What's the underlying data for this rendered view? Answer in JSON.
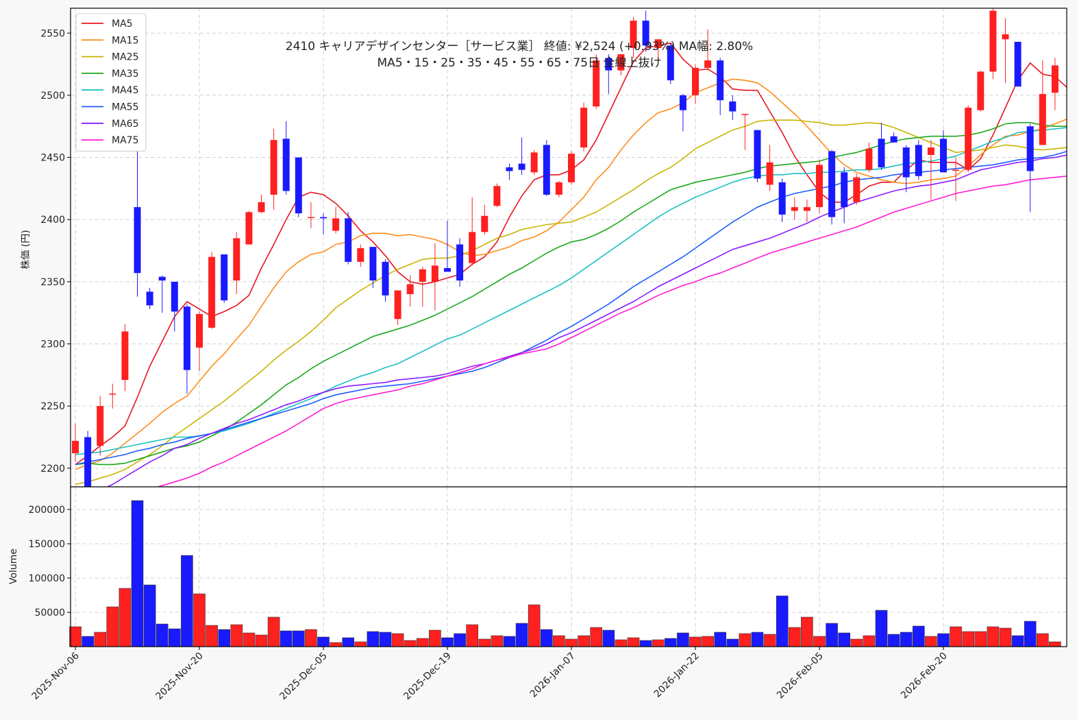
{
  "colors": {
    "up": "#ff2020",
    "down": "#1a1aff",
    "axis": "#000000",
    "MA5": "#e8141c",
    "MA15": "#ff8c1a",
    "MA25": "#c8b400",
    "MA35": "#1aa81a",
    "MA45": "#1ac0c0",
    "MA55": "#1a5cff",
    "MA65": "#8a1aff",
    "MA75": "#ff1ad2"
  },
  "chart_data": {
    "type": "candlestick",
    "title_line1": "2410 キャリアデザインセンター［サービス業］ 終値: ¥2,524 (+0.93%) MA幅: 2.80%",
    "title_line2": "MA5・15・25・35・45・55・65・75日 全線上抜け",
    "ylabel_price": "株価 (円)",
    "ylabel_volume": "Volume",
    "price_ylim": [
      2185,
      2570
    ],
    "price_ticks": [
      2200,
      2250,
      2300,
      2350,
      2400,
      2450,
      2500,
      2550
    ],
    "volume_ylim": [
      0,
      225000
    ],
    "volume_ticks": [
      50000,
      100000,
      150000,
      200000
    ],
    "volume_tick_labels": [
      "50000",
      "100000",
      "150000",
      "200000"
    ],
    "x_tick_labels": [
      {
        "index": 0,
        "label": "2025-Nov-06"
      },
      {
        "index": 10,
        "label": "2025-Nov-20"
      },
      {
        "index": 20,
        "label": "2025-Dec-05"
      },
      {
        "index": 30,
        "label": "2025-Dec-19"
      },
      {
        "index": 40,
        "label": "2026-Jan-07"
      },
      {
        "index": 50,
        "label": "2026-Jan-22"
      },
      {
        "index": 60,
        "label": "2026-Feb-05"
      },
      {
        "index": 70,
        "label": "2026-Feb-20"
      }
    ],
    "legend": [
      "MA5",
      "MA15",
      "MA25",
      "MA35",
      "MA45",
      "MA55",
      "MA65",
      "MA75"
    ],
    "candles": [
      {
        "o": 2212,
        "h": 2236,
        "l": 2205,
        "c": 2222,
        "v": 29000
      },
      {
        "o": 2225,
        "h": 2230,
        "l": 2178,
        "c": 2185,
        "v": 15000
      },
      {
        "o": 2218,
        "h": 2258,
        "l": 2210,
        "c": 2250,
        "v": 21000
      },
      {
        "o": 2260,
        "h": 2268,
        "l": 2248,
        "c": 2260,
        "v": 58000
      },
      {
        "o": 2271,
        "h": 2316,
        "l": 2262,
        "c": 2310,
        "v": 85000
      },
      {
        "o": 2410,
        "h": 2455,
        "l": 2338,
        "c": 2357,
        "v": 213000
      },
      {
        "o": 2342,
        "h": 2345,
        "l": 2328,
        "c": 2331,
        "v": 90000
      },
      {
        "o": 2354,
        "h": 2355,
        "l": 2325,
        "c": 2351,
        "v": 33000
      },
      {
        "o": 2350,
        "h": 2350,
        "l": 2310,
        "c": 2326,
        "v": 26000
      },
      {
        "o": 2330,
        "h": 2332,
        "l": 2260,
        "c": 2279,
        "v": 133000
      },
      {
        "o": 2297,
        "h": 2326,
        "l": 2278,
        "c": 2324,
        "v": 77000
      },
      {
        "o": 2313,
        "h": 2374,
        "l": 2312,
        "c": 2370,
        "v": 31000
      },
      {
        "o": 2372,
        "h": 2372,
        "l": 2333,
        "c": 2335,
        "v": 25000
      },
      {
        "o": 2351,
        "h": 2390,
        "l": 2340,
        "c": 2385,
        "v": 32000
      },
      {
        "o": 2380,
        "h": 2407,
        "l": 2380,
        "c": 2406,
        "v": 20000
      },
      {
        "o": 2406,
        "h": 2420,
        "l": 2405,
        "c": 2414,
        "v": 17000
      },
      {
        "o": 2420,
        "h": 2473,
        "l": 2408,
        "c": 2464,
        "v": 43000
      },
      {
        "o": 2465,
        "h": 2479,
        "l": 2420,
        "c": 2423,
        "v": 23000
      },
      {
        "o": 2450,
        "h": 2450,
        "l": 2402,
        "c": 2405,
        "v": 23000
      },
      {
        "o": 2402,
        "h": 2414,
        "l": 2393,
        "c": 2402,
        "v": 25000
      },
      {
        "o": 2402,
        "h": 2405,
        "l": 2388,
        "c": 2401,
        "v": 14000
      },
      {
        "o": 2391,
        "h": 2410,
        "l": 2389,
        "c": 2401,
        "v": 6000
      },
      {
        "o": 2401,
        "h": 2406,
        "l": 2364,
        "c": 2366,
        "v": 13000
      },
      {
        "o": 2366,
        "h": 2380,
        "l": 2362,
        "c": 2377,
        "v": 7000
      },
      {
        "o": 2378,
        "h": 2378,
        "l": 2345,
        "c": 2351,
        "v": 22000
      },
      {
        "o": 2366,
        "h": 2368,
        "l": 2334,
        "c": 2339,
        "v": 21000
      },
      {
        "o": 2320,
        "h": 2343,
        "l": 2315,
        "c": 2343,
        "v": 19000
      },
      {
        "o": 2340,
        "h": 2355,
        "l": 2330,
        "c": 2348,
        "v": 9000
      },
      {
        "o": 2350,
        "h": 2362,
        "l": 2330,
        "c": 2360,
        "v": 12000
      },
      {
        "o": 2350,
        "h": 2381,
        "l": 2327,
        "c": 2363,
        "v": 24000
      },
      {
        "o": 2361,
        "h": 2399,
        "l": 2358,
        "c": 2358,
        "v": 13000
      },
      {
        "o": 2380,
        "h": 2385,
        "l": 2346,
        "c": 2351,
        "v": 19000
      },
      {
        "o": 2365,
        "h": 2418,
        "l": 2363,
        "c": 2390,
        "v": 32000
      },
      {
        "o": 2390,
        "h": 2412,
        "l": 2388,
        "c": 2403,
        "v": 11000
      },
      {
        "o": 2411,
        "h": 2429,
        "l": 2410,
        "c": 2427,
        "v": 16000
      },
      {
        "o": 2442,
        "h": 2445,
        "l": 2432,
        "c": 2439,
        "v": 15000
      },
      {
        "o": 2445,
        "h": 2466,
        "l": 2436,
        "c": 2440,
        "v": 34000
      },
      {
        "o": 2438,
        "h": 2456,
        "l": 2436,
        "c": 2454,
        "v": 61000
      },
      {
        "o": 2460,
        "h": 2464,
        "l": 2419,
        "c": 2420,
        "v": 25000
      },
      {
        "o": 2420,
        "h": 2431,
        "l": 2418,
        "c": 2430,
        "v": 16000
      },
      {
        "o": 2430,
        "h": 2455,
        "l": 2428,
        "c": 2453,
        "v": 11000
      },
      {
        "o": 2458,
        "h": 2494,
        "l": 2455,
        "c": 2490,
        "v": 16000
      },
      {
        "o": 2491,
        "h": 2533,
        "l": 2489,
        "c": 2528,
        "v": 28000
      },
      {
        "o": 2530,
        "h": 2533,
        "l": 2501,
        "c": 2520,
        "v": 24000
      },
      {
        "o": 2520,
        "h": 2533,
        "l": 2516,
        "c": 2533,
        "v": 10000
      },
      {
        "o": 2538,
        "h": 2563,
        "l": 2530,
        "c": 2560,
        "v": 13000
      },
      {
        "o": 2560,
        "h": 2568,
        "l": 2535,
        "c": 2540,
        "v": 9000
      },
      {
        "o": 2538,
        "h": 2545,
        "l": 2530,
        "c": 2545,
        "v": 10000
      },
      {
        "o": 2540,
        "h": 2542,
        "l": 2509,
        "c": 2512,
        "v": 12000
      },
      {
        "o": 2500,
        "h": 2501,
        "l": 2471,
        "c": 2488,
        "v": 20000
      },
      {
        "o": 2500,
        "h": 2525,
        "l": 2493,
        "c": 2522,
        "v": 14000
      },
      {
        "o": 2522,
        "h": 2553,
        "l": 2520,
        "c": 2528,
        "v": 15000
      },
      {
        "o": 2528,
        "h": 2530,
        "l": 2484,
        "c": 2496,
        "v": 21000
      },
      {
        "o": 2495,
        "h": 2500,
        "l": 2480,
        "c": 2487,
        "v": 11000
      },
      {
        "o": 2485,
        "h": 2485,
        "l": 2456,
        "c": 2485,
        "v": 19000
      },
      {
        "o": 2472,
        "h": 2472,
        "l": 2430,
        "c": 2433,
        "v": 21000
      },
      {
        "o": 2428,
        "h": 2460,
        "l": 2423,
        "c": 2446,
        "v": 18000
      },
      {
        "o": 2430,
        "h": 2433,
        "l": 2398,
        "c": 2404,
        "v": 74000
      },
      {
        "o": 2407,
        "h": 2418,
        "l": 2400,
        "c": 2410,
        "v": 28000
      },
      {
        "o": 2407,
        "h": 2416,
        "l": 2398,
        "c": 2410,
        "v": 43000
      },
      {
        "o": 2410,
        "h": 2448,
        "l": 2405,
        "c": 2444,
        "v": 15000
      },
      {
        "o": 2455,
        "h": 2456,
        "l": 2396,
        "c": 2402,
        "v": 34000
      },
      {
        "o": 2438,
        "h": 2442,
        "l": 2397,
        "c": 2410,
        "v": 20000
      },
      {
        "o": 2414,
        "h": 2437,
        "l": 2412,
        "c": 2434,
        "v": 11000
      },
      {
        "o": 2440,
        "h": 2462,
        "l": 2438,
        "c": 2457,
        "v": 16000
      },
      {
        "o": 2465,
        "h": 2478,
        "l": 2440,
        "c": 2442,
        "v": 53000
      },
      {
        "o": 2467,
        "h": 2470,
        "l": 2462,
        "c": 2462,
        "v": 18000
      },
      {
        "o": 2458,
        "h": 2460,
        "l": 2422,
        "c": 2434,
        "v": 21000
      },
      {
        "o": 2460,
        "h": 2464,
        "l": 2432,
        "c": 2435,
        "v": 30000
      },
      {
        "o": 2452,
        "h": 2464,
        "l": 2416,
        "c": 2458,
        "v": 15000
      },
      {
        "o": 2465,
        "h": 2472,
        "l": 2438,
        "c": 2438,
        "v": 19000
      },
      {
        "o": 2440,
        "h": 2450,
        "l": 2415,
        "c": 2440,
        "v": 29000
      },
      {
        "o": 2440,
        "h": 2492,
        "l": 2438,
        "c": 2490,
        "v": 22000
      },
      {
        "o": 2488,
        "h": 2520,
        "l": 2487,
        "c": 2519,
        "v": 22000
      },
      {
        "o": 2519,
        "h": 2570,
        "l": 2513,
        "c": 2568,
        "v": 29000
      },
      {
        "o": 2545,
        "h": 2562,
        "l": 2510,
        "c": 2549,
        "v": 27000
      },
      {
        "o": 2543,
        "h": 2543,
        "l": 2507,
        "c": 2507,
        "v": 16000
      },
      {
        "o": 2475,
        "h": 2477,
        "l": 2406,
        "c": 2439,
        "v": 37000
      },
      {
        "o": 2460,
        "h": 2528,
        "l": 2460,
        "c": 2501,
        "v": 19000
      },
      {
        "o": 2502,
        "h": 2530,
        "l": 2488,
        "c": 2524,
        "v": 7000
      }
    ],
    "moving_averages": {
      "MA5": [
        2203,
        2210,
        2218,
        2225,
        2234,
        2257,
        2282,
        2302,
        2322,
        2334,
        2328,
        2322,
        2326,
        2331,
        2339,
        2361,
        2380,
        2400,
        2418,
        2422,
        2420,
        2413,
        2403,
        2391,
        2382,
        2371,
        2358,
        2350,
        2348,
        2350,
        2353,
        2356,
        2364,
        2370,
        2382,
        2402,
        2419,
        2432,
        2436,
        2436,
        2440,
        2448,
        2464,
        2485,
        2506,
        2527,
        2538,
        2540,
        2542,
        2529,
        2520,
        2521,
        2515,
        2505,
        2504,
        2504,
        2487,
        2470,
        2451,
        2436,
        2422,
        2414,
        2414,
        2420,
        2427,
        2430,
        2430,
        2440,
        2448,
        2446,
        2446,
        2446,
        2440,
        2449,
        2468,
        2490,
        2512,
        2526,
        2517,
        2515,
        2506
      ],
      "MA15": [
        2199,
        2203,
        2206,
        2212,
        2220,
        2228,
        2236,
        2245,
        2252,
        2258,
        2270,
        2282,
        2292,
        2304,
        2315,
        2330,
        2345,
        2358,
        2366,
        2372,
        2374,
        2380,
        2382,
        2387,
        2389,
        2389,
        2387,
        2388,
        2386,
        2384,
        2380,
        2374,
        2371,
        2372,
        2375,
        2378,
        2383,
        2386,
        2391,
        2398,
        2408,
        2418,
        2432,
        2442,
        2456,
        2468,
        2478,
        2486,
        2489,
        2494,
        2502,
        2506,
        2510,
        2513,
        2512,
        2510,
        2503,
        2494,
        2485,
        2475,
        2464,
        2453,
        2444,
        2438,
        2435,
        2432,
        2430,
        2429,
        2430,
        2432,
        2433,
        2435,
        2443,
        2452,
        2460,
        2467,
        2468,
        2471,
        2473,
        2477,
        2481
      ],
      "MA25": [
        2187,
        2189,
        2192,
        2195,
        2199,
        2205,
        2211,
        2218,
        2226,
        2233,
        2240,
        2247,
        2254,
        2262,
        2270,
        2278,
        2287,
        2295,
        2302,
        2310,
        2319,
        2329,
        2336,
        2343,
        2349,
        2355,
        2360,
        2364,
        2368,
        2369,
        2369,
        2371,
        2375,
        2380,
        2385,
        2388,
        2392,
        2394,
        2396,
        2397,
        2398,
        2402,
        2406,
        2412,
        2418,
        2424,
        2431,
        2437,
        2442,
        2449,
        2457,
        2462,
        2467,
        2472,
        2475,
        2479,
        2480,
        2480,
        2480,
        2479,
        2478,
        2476,
        2476,
        2477,
        2478,
        2477,
        2474,
        2470,
        2466,
        2462,
        2458,
        2454,
        2455,
        2456,
        2458,
        2460,
        2459,
        2457,
        2456,
        2457,
        2458
      ],
      "MA35": [
        2203,
        2204,
        2203,
        2203,
        2204,
        2207,
        2210,
        2213,
        2216,
        2218,
        2221,
        2226,
        2231,
        2237,
        2244,
        2251,
        2259,
        2267,
        2273,
        2280,
        2286,
        2291,
        2296,
        2301,
        2306,
        2309,
        2312,
        2315,
        2319,
        2323,
        2328,
        2333,
        2338,
        2344,
        2350,
        2356,
        2361,
        2367,
        2373,
        2378,
        2382,
        2384,
        2388,
        2393,
        2399,
        2406,
        2412,
        2418,
        2424,
        2427,
        2430,
        2432,
        2434,
        2436,
        2438,
        2441,
        2443,
        2444,
        2445,
        2446,
        2447,
        2450,
        2452,
        2454,
        2457,
        2460,
        2463,
        2465,
        2466,
        2467,
        2467,
        2467,
        2468,
        2470,
        2473,
        2477,
        2478,
        2478,
        2476,
        2475,
        2475
      ],
      "MA45": [
        2211,
        2212,
        2213,
        2215,
        2217,
        2219,
        2221,
        2223,
        2225,
        2225,
        2226,
        2228,
        2230,
        2233,
        2236,
        2240,
        2244,
        2248,
        2252,
        2256,
        2261,
        2266,
        2270,
        2274,
        2277,
        2281,
        2284,
        2289,
        2294,
        2299,
        2304,
        2307,
        2312,
        2317,
        2322,
        2327,
        2332,
        2337,
        2342,
        2347,
        2353,
        2360,
        2367,
        2374,
        2381,
        2388,
        2395,
        2402,
        2408,
        2413,
        2418,
        2422,
        2426,
        2430,
        2433,
        2435,
        2436,
        2436,
        2437,
        2437,
        2438,
        2438,
        2439,
        2440,
        2440,
        2441,
        2443,
        2445,
        2446,
        2447,
        2449,
        2451,
        2455,
        2459,
        2463,
        2466,
        2470,
        2471,
        2472,
        2473,
        2474
      ],
      "MA55": [
        2203,
        2205,
        2207,
        2209,
        2211,
        2214,
        2216,
        2219,
        2221,
        2224,
        2226,
        2228,
        2231,
        2234,
        2237,
        2240,
        2243,
        2246,
        2249,
        2252,
        2256,
        2259,
        2261,
        2263,
        2265,
        2266,
        2267,
        2268,
        2270,
        2272,
        2274,
        2276,
        2278,
        2281,
        2285,
        2289,
        2293,
        2298,
        2303,
        2309,
        2314,
        2320,
        2326,
        2332,
        2339,
        2346,
        2352,
        2358,
        2364,
        2370,
        2377,
        2384,
        2391,
        2398,
        2404,
        2410,
        2414,
        2418,
        2421,
        2423,
        2425,
        2427,
        2430,
        2432,
        2433,
        2434,
        2436,
        2437,
        2438,
        2439,
        2440,
        2441,
        2442,
        2443,
        2444,
        2446,
        2448,
        2449,
        2450,
        2452,
        2455
      ],
      "MA65": [
        2170,
        2176,
        2182,
        2187,
        2193,
        2199,
        2205,
        2210,
        2216,
        2219,
        2224,
        2228,
        2232,
        2236,
        2239,
        2243,
        2247,
        2251,
        2254,
        2258,
        2261,
        2264,
        2266,
        2267,
        2268,
        2269,
        2271,
        2272,
        2273,
        2274,
        2276,
        2279,
        2282,
        2284,
        2287,
        2290,
        2293,
        2296,
        2300,
        2305,
        2309,
        2314,
        2319,
        2324,
        2329,
        2334,
        2340,
        2346,
        2351,
        2356,
        2361,
        2366,
        2371,
        2376,
        2379,
        2382,
        2385,
        2389,
        2393,
        2397,
        2402,
        2406,
        2410,
        2414,
        2417,
        2420,
        2423,
        2425,
        2427,
        2428,
        2430,
        2432,
        2436,
        2440,
        2442,
        2444,
        2446,
        2447,
        2449,
        2450,
        2452
      ],
      "MA75": [
        2165,
        2168,
        2171,
        2174,
        2177,
        2180,
        2183,
        2186,
        2189,
        2192,
        2196,
        2201,
        2205,
        2210,
        2215,
        2220,
        2225,
        2230,
        2236,
        2242,
        2248,
        2252,
        2255,
        2257,
        2259,
        2261,
        2263,
        2266,
        2268,
        2271,
        2274,
        2277,
        2280,
        2284,
        2287,
        2289,
        2292,
        2294,
        2296,
        2300,
        2305,
        2310,
        2315,
        2320,
        2325,
        2329,
        2334,
        2339,
        2343,
        2347,
        2350,
        2354,
        2357,
        2361,
        2365,
        2369,
        2373,
        2376,
        2379,
        2382,
        2385,
        2388,
        2391,
        2394,
        2398,
        2402,
        2406,
        2409,
        2412,
        2415,
        2418,
        2421,
        2423,
        2425,
        2427,
        2428,
        2430,
        2432,
        2433,
        2434,
        2435
      ]
    }
  }
}
